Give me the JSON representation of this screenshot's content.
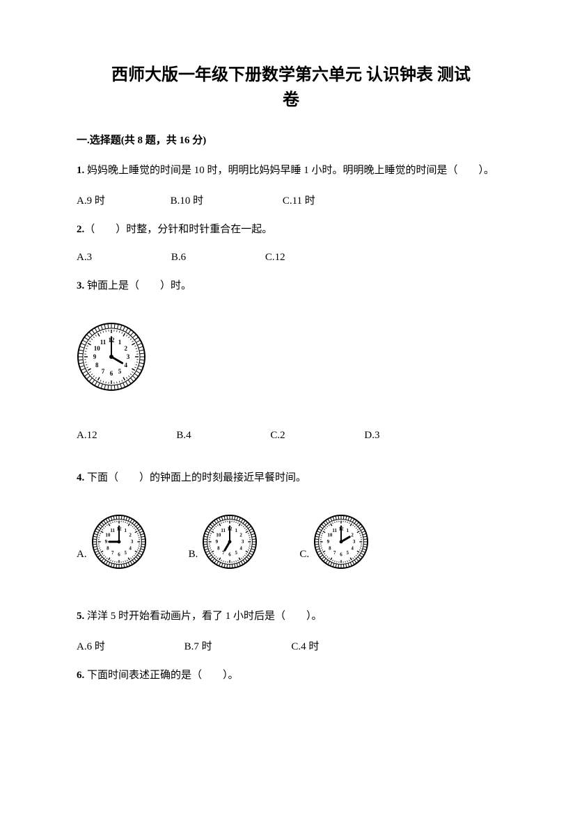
{
  "title": {
    "line1": "西师大版一年级下册数学第六单元 认识钟表 测试",
    "line2": "卷"
  },
  "section1": {
    "header": "一.选择题(共 8 题，共 16 分)"
  },
  "q1": {
    "num": "1.",
    "text": " 妈妈晚上睡觉的时间是 10 时，明明比妈妈早睡 1 小时。明明晚上睡觉的时间是（　　）。",
    "optA": "A.9 时",
    "optB": "B.10 时",
    "optC": "C.11 时"
  },
  "q2": {
    "num": "2.",
    "text": "（　　）时整，分针和时针重合在一起。",
    "optA": "A.3",
    "optB": "B.6",
    "optC": "C.12"
  },
  "q3": {
    "num": "3.",
    "text": " 钟面上是（　　）时。",
    "clock": {
      "hour": 4,
      "minute": 0,
      "size": 100
    },
    "optA": "A.12",
    "optB": "B.4",
    "optC": "C.2",
    "optD": "D.3"
  },
  "q4": {
    "num": "4.",
    "text": " 下面（　　）的钟面上的时刻最接近早餐时间。",
    "labelA": "A.",
    "labelB": "B.",
    "labelC": "C.",
    "clockA": {
      "hour": 9,
      "minute": 0,
      "size": 80
    },
    "clockB": {
      "hour": 7,
      "minute": 0,
      "size": 80
    },
    "clockC": {
      "hour": 2,
      "minute": 0,
      "size": 80
    }
  },
  "q5": {
    "num": "5.",
    "text": " 洋洋 5 时开始看动画片，看了 1 小时后是（　　）。",
    "optA": "A.6 时",
    "optB": "B.7 时",
    "optC": "C.4 时"
  },
  "q6": {
    "num": "6.",
    "text": " 下面时间表述正确的是（　　）。"
  },
  "clock_style": {
    "face_fill": "#ffffff",
    "stroke": "#000000",
    "ring_outer_stroke_width": 2,
    "num_fontsize_large": 9,
    "num_fontsize_small": 7,
    "hour_hand_len_ratio": 0.45,
    "minute_hand_len_ratio": 0.72,
    "hour_hand_width": 3,
    "minute_hand_width": 2
  }
}
